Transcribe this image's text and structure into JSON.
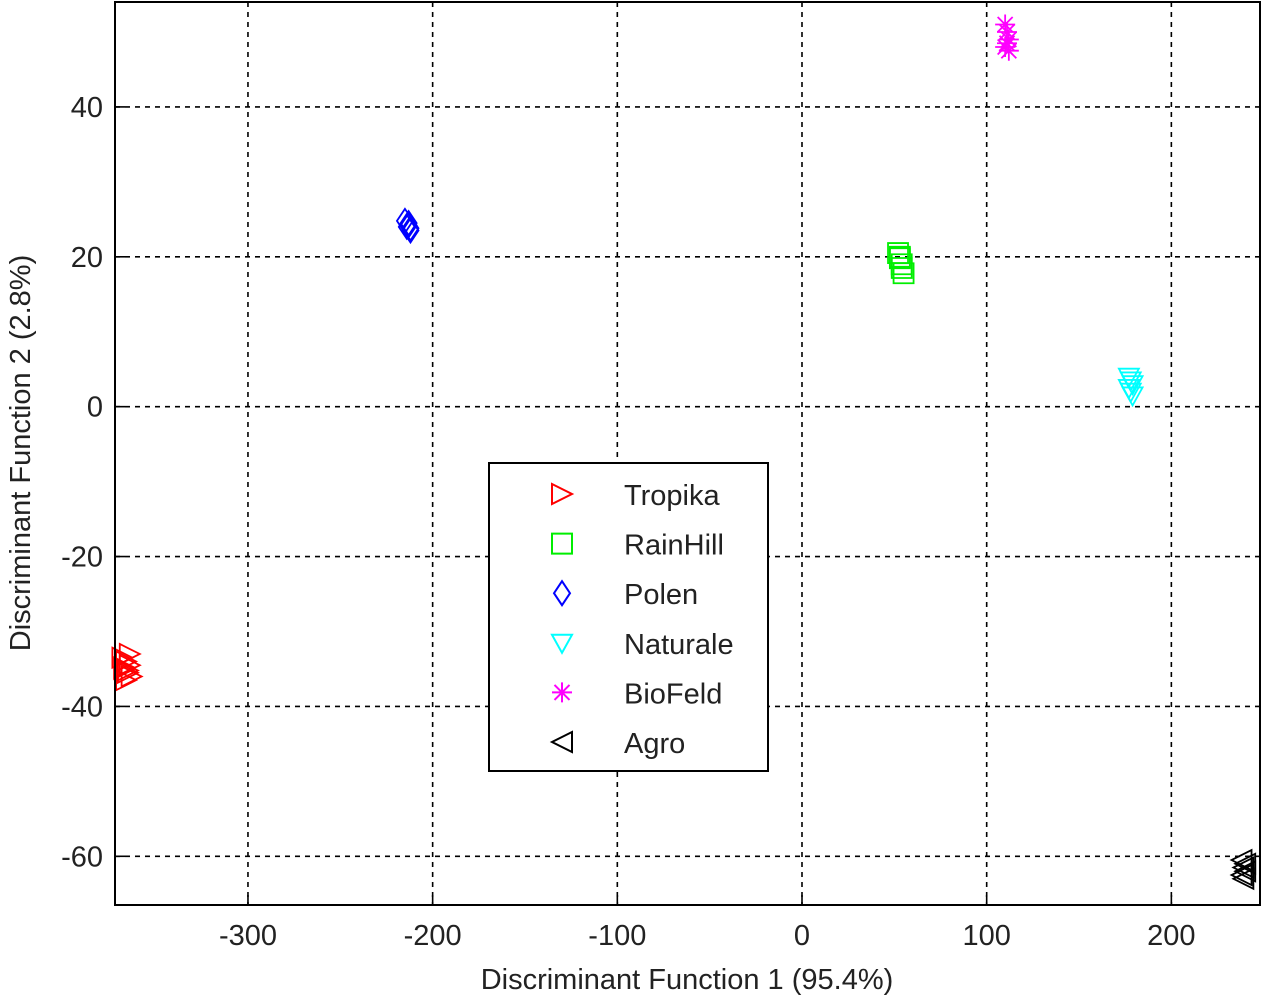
{
  "chart_data": {
    "type": "scatter",
    "xlabel": "Discriminant Function 1 (95.4%)",
    "ylabel": "Discriminant Function 2 (2.8%)",
    "xlim": [
      -372,
      248
    ],
    "ylim": [
      -66.5,
      54
    ],
    "xticks": [
      -300,
      -200,
      -100,
      0,
      100,
      200
    ],
    "yticks": [
      -60,
      -40,
      -20,
      0,
      20,
      40
    ],
    "grid": true,
    "legend_position": "center",
    "series": [
      {
        "name": "Tropika",
        "marker": "triangle-right",
        "color": "#ff0000",
        "x": [
          -368,
          -366,
          -364,
          -367,
          -365,
          -363,
          -366,
          -364,
          -367,
          -365
        ],
        "y": [
          -33.5,
          -34.0,
          -34.5,
          -35.0,
          -35.5,
          -36.0,
          -36.5,
          -33.0,
          -34.8,
          -35.2
        ]
      },
      {
        "name": "RainHill",
        "marker": "square",
        "color": "#00ee00",
        "x": [
          52,
          53,
          54,
          55,
          53,
          54
        ],
        "y": [
          20.5,
          19.8,
          19.0,
          17.8,
          20.0,
          18.5
        ]
      },
      {
        "name": "Polen",
        "marker": "diamond",
        "color": "#0000ff",
        "x": [
          -213,
          -214,
          -212,
          -213,
          -215,
          -212
        ],
        "y": [
          24.5,
          24.0,
          23.5,
          24.2,
          24.8,
          23.8
        ]
      },
      {
        "name": "Naturale",
        "marker": "triangle-down",
        "color": "#00ffff",
        "x": [
          177,
          178,
          179,
          177,
          178,
          179
        ],
        "y": [
          4.0,
          3.5,
          3.0,
          2.5,
          2.0,
          1.5
        ]
      },
      {
        "name": "BioFeld",
        "marker": "asterisk",
        "color": "#ff00ff",
        "x": [
          110,
          111,
          112,
          111,
          110,
          112
        ],
        "y": [
          51.0,
          50.0,
          49.0,
          48.5,
          48.0,
          47.5
        ]
      },
      {
        "name": "Agro",
        "marker": "triangle-left",
        "color": "#000000",
        "x": [
          238,
          239,
          240,
          238,
          239,
          240
        ],
        "y": [
          -60.5,
          -61.5,
          -62.0,
          -62.5,
          -63.0,
          -61.0
        ]
      }
    ]
  }
}
